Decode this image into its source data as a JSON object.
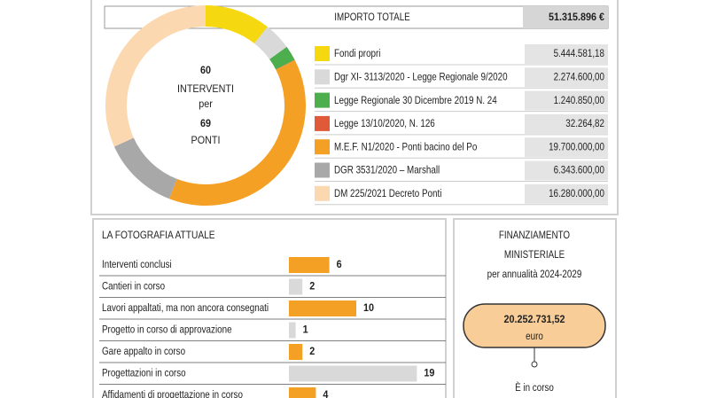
{
  "chart_data": [
    {
      "type": "pie",
      "center_text": [
        "60",
        "INTERVENTI",
        "per",
        "69",
        "PONTI"
      ],
      "total_label": "IMPORTO TOTALE",
      "total_value_label": "51.315.896 €",
      "categories": [
        "Fondi propri",
        "Dgr XI- 3113/2020 - Legge Regionale 9/2020",
        "Legge Regionale 30 Dicembre 2019 N. 24",
        "Legge 13/10/2020, N. 126",
        "M.E.F. N1/2020 - Ponti bacino del Po",
        "DGR 3531/2020 – Marshall",
        "DM 225/2021 Decreto Ponti"
      ],
      "values": [
        5444581.18,
        2274600,
        1240850,
        32264.82,
        19700000,
        6343600,
        16280000
      ],
      "value_labels": [
        "5.444.581,18",
        "2.274.600,00",
        "1.240.850,00",
        "32.264,82",
        "19.700.000,00",
        "6.343.600,00",
        "16.280.000,00"
      ],
      "colors": [
        "#f5d80f",
        "#d9d9d9",
        "#4cae4c",
        "#e05a3a",
        "#f4a024",
        "#a8a8a8",
        "#fbd8b0"
      ]
    },
    {
      "type": "bar",
      "title": "LA FOTOGRAFIA ATTUALE",
      "categories": [
        "Interventi conclusi",
        "Cantieri in corso",
        "Lavori appaltati, ma non ancora consegnati",
        "Progetto in corso di approvazione",
        "Gare appalto in corso",
        "Progettazioni in corso",
        "Affidamenti di progettazione in corso"
      ],
      "values": [
        6,
        2,
        10,
        1,
        2,
        19,
        4
      ],
      "colors": [
        "#f4a024",
        "#d9d9d9",
        "#f4a024",
        "#d9d9d9",
        "#f4a024",
        "#d9d9d9",
        "#f4a024"
      ]
    }
  ],
  "funding": {
    "title_lines": [
      "FINANZIAMENTO",
      "MINISTERIALE"
    ],
    "subtitle": "per annualità 2024-2029",
    "amount": "20.252.731,52",
    "unit": "euro",
    "status": "È in corso"
  }
}
